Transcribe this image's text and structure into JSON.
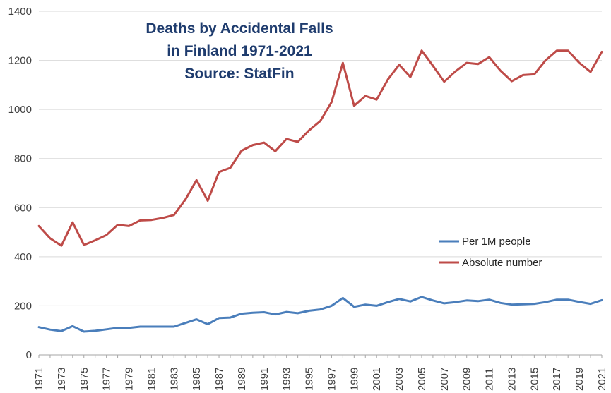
{
  "chart_data": {
    "type": "line",
    "title_lines": [
      "Deaths by Accidental Falls",
      "in Finland 1971-2021",
      "Source: StatFin"
    ],
    "xlabel": "",
    "ylabel": "",
    "ylim": [
      0,
      1400
    ],
    "yticks": [
      0,
      200,
      400,
      600,
      800,
      1000,
      1200,
      1400
    ],
    "x": [
      1971,
      1972,
      1973,
      1974,
      1975,
      1976,
      1977,
      1978,
      1979,
      1980,
      1981,
      1982,
      1983,
      1984,
      1985,
      1986,
      1987,
      1988,
      1989,
      1990,
      1991,
      1992,
      1993,
      1994,
      1995,
      1996,
      1997,
      1998,
      1999,
      2000,
      2001,
      2002,
      2003,
      2004,
      2005,
      2006,
      2007,
      2008,
      2009,
      2010,
      2011,
      2012,
      2013,
      2014,
      2015,
      2016,
      2017,
      2018,
      2019,
      2020,
      2021
    ],
    "xtick_labels": [
      "1971",
      "1973",
      "1975",
      "1977",
      "1979",
      "1981",
      "1983",
      "1985",
      "1987",
      "1989",
      "1991",
      "1993",
      "1995",
      "1997",
      "1999",
      "2001",
      "2003",
      "2005",
      "2007",
      "2009",
      "2011",
      "2013",
      "2015",
      "2017",
      "2019",
      "2021"
    ],
    "grid": "horizontal",
    "legend_position": "right",
    "series": [
      {
        "name": "Per 1M people",
        "color": "#4a7ebb",
        "values": [
          113,
          103,
          97,
          117,
          95,
          98,
          104,
          110,
          110,
          115,
          115,
          115,
          115,
          130,
          145,
          125,
          150,
          152,
          168,
          172,
          174,
          165,
          175,
          170,
          180,
          185,
          200,
          232,
          196,
          205,
          200,
          215,
          228,
          218,
          236,
          222,
          210,
          215,
          222,
          219,
          225,
          212,
          205,
          206,
          208,
          215,
          225,
          225,
          216,
          208,
          223
        ]
      },
      {
        "name": "Absolute number",
        "color": "#be4b48",
        "values": [
          525,
          475,
          445,
          540,
          448,
          467,
          488,
          530,
          525,
          548,
          550,
          558,
          570,
          632,
          712,
          628,
          745,
          762,
          832,
          855,
          865,
          830,
          880,
          868,
          915,
          953,
          1030,
          1190,
          1015,
          1055,
          1040,
          1122,
          1182,
          1132,
          1240,
          1178,
          1113,
          1155,
          1190,
          1185,
          1213,
          1158,
          1115,
          1140,
          1143,
          1200,
          1240,
          1240,
          1190,
          1153,
          1235
        ]
      }
    ]
  }
}
